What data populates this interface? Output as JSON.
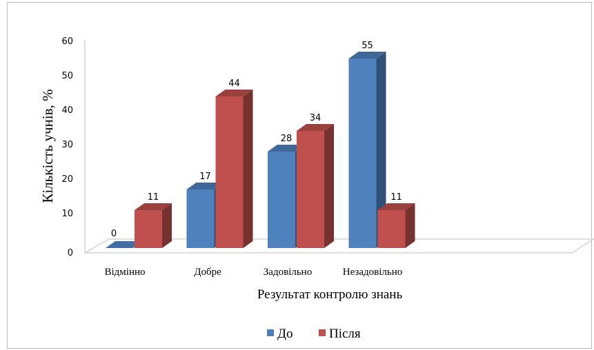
{
  "chart_data": {
    "type": "bar",
    "categories": [
      "Відмінно",
      "Добре",
      "Задовільно",
      "Незадовільно"
    ],
    "series": [
      {
        "name": "До",
        "values": [
          0,
          17,
          28,
          55
        ],
        "color": "#4f81bd"
      },
      {
        "name": "Після",
        "values": [
          11,
          44,
          34,
          11
        ],
        "color": "#c0504d"
      }
    ],
    "xlabel": "Результат контролю знань",
    "ylabel": "Кількість учнів, %",
    "ylim": [
      0,
      60
    ],
    "yticks": [
      0,
      10,
      20,
      30,
      40,
      50,
      60
    ],
    "grid": false,
    "legend": "bottom",
    "style": "3d-clustered-column"
  }
}
